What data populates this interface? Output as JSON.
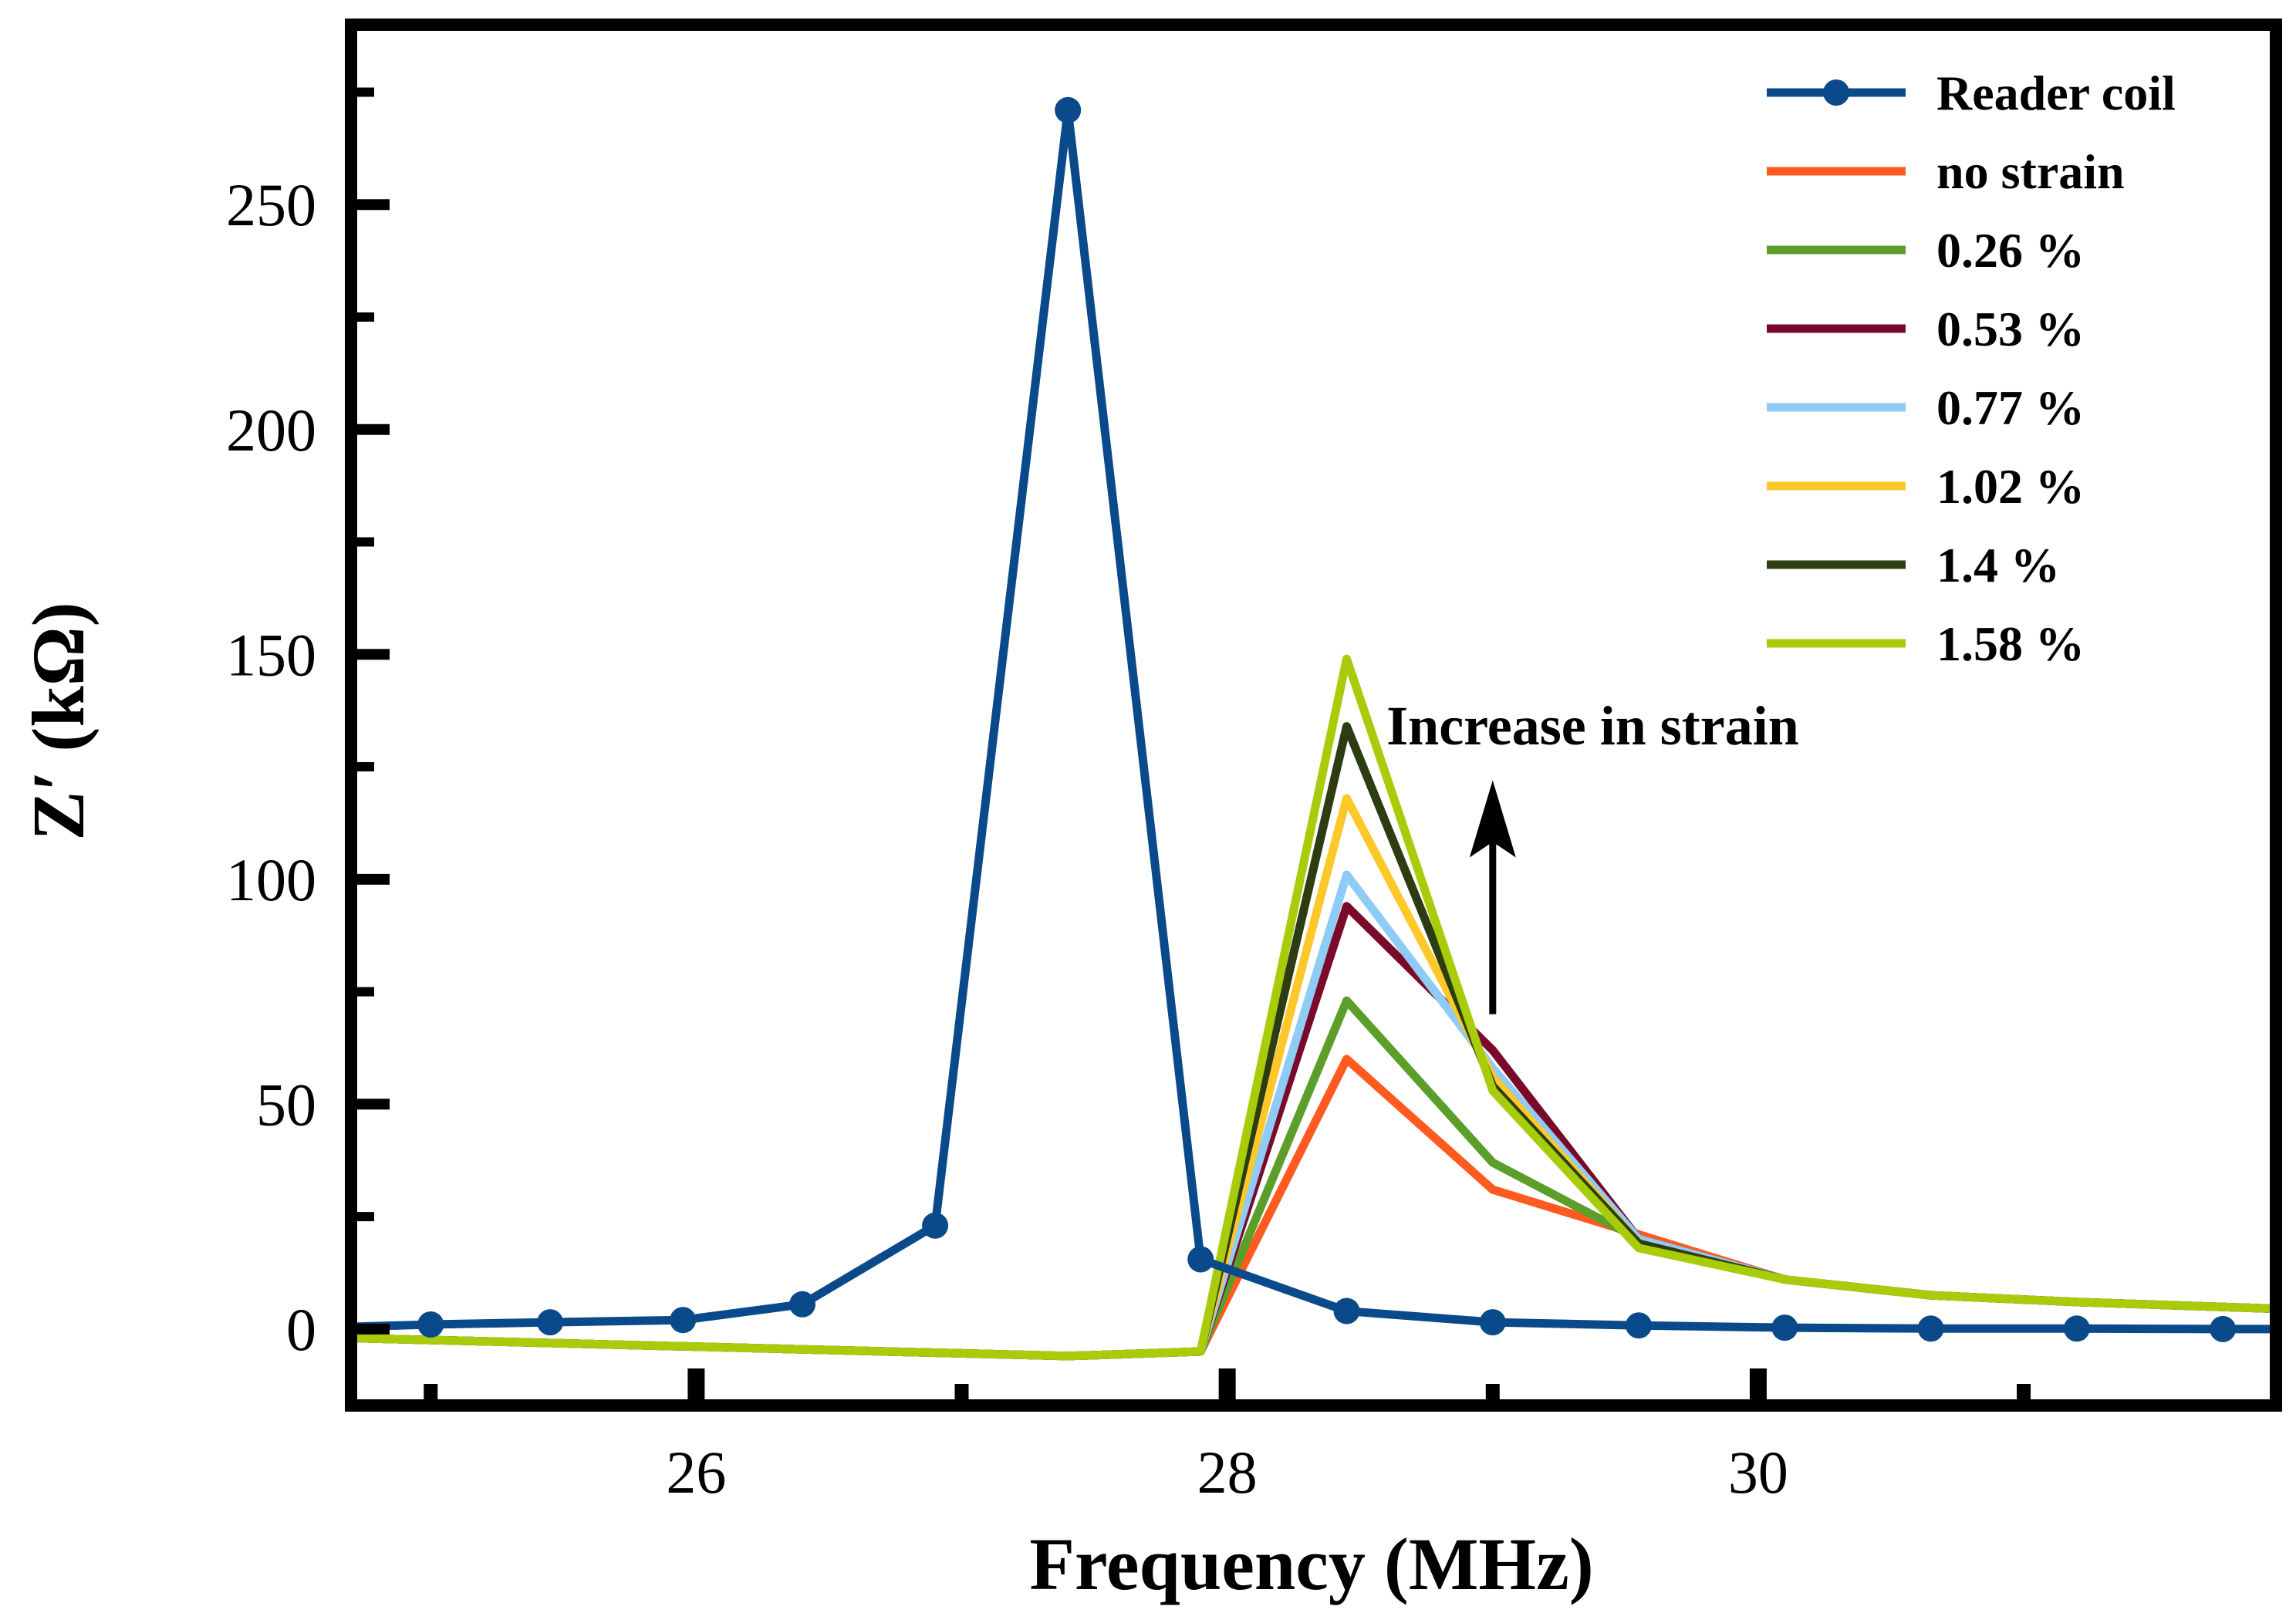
{
  "chart_data": {
    "type": "line",
    "title": "",
    "xlabel": "Frequency (MHz)",
    "ylabel": "Z′ (kΩ)",
    "xlim": [
      24.7,
      31.95
    ],
    "ylim": [
      -17,
      290
    ],
    "xticks": [
      26,
      28,
      30
    ],
    "xtick_labels": [
      "26",
      "28",
      "30"
    ],
    "yticks": [
      0,
      50,
      100,
      150,
      200,
      250
    ],
    "ytick_labels": [
      "0",
      "50",
      "100",
      "150",
      "200",
      "250"
    ],
    "legend_position": "top-right",
    "annotation": {
      "text": "Increase in strain",
      "arrow": "up",
      "arrow_x": 29.0,
      "arrow_from_y": 70,
      "arrow_to_y": 122,
      "text_x": 28.6,
      "text_y": 130
    },
    "x_common": [
      24.7,
      27.9,
      28.45,
      29.0,
      29.55,
      30.1,
      30.65,
      31.2,
      31.95
    ],
    "series": [
      {
        "name": "Reader coil",
        "color": "#0b4a8a",
        "marker": "circle",
        "x": [
          24.7,
          25.0,
          25.45,
          25.95,
          26.4,
          26.9,
          27.4,
          27.9,
          28.45,
          29.0,
          29.55,
          30.1,
          30.65,
          31.2,
          31.75,
          31.95
        ],
        "y": [
          0.5,
          1,
          1.5,
          2,
          5.5,
          23,
          271,
          15.5,
          4,
          1.5,
          0.8,
          0.3,
          0.1,
          0.1,
          0,
          0
        ]
      },
      {
        "name": "no strain",
        "color": "#ff5a1f",
        "marker": "none",
        "x": [
          24.7,
          27.4,
          27.9,
          28.45,
          29.0,
          29.55,
          30.1,
          30.65,
          31.2,
          31.95
        ],
        "y": [
          -2,
          -6,
          -5,
          60,
          31,
          21,
          11,
          7.5,
          6,
          4.5
        ]
      },
      {
        "name": "0.26 %",
        "color": "#5c9e2a",
        "marker": "none",
        "x": [
          24.7,
          27.4,
          27.9,
          28.45,
          29.0,
          29.55,
          30.1,
          30.65,
          31.2,
          31.95
        ],
        "y": [
          -2,
          -6,
          -5,
          73,
          37,
          20,
          11,
          7.5,
          6,
          4.5
        ]
      },
      {
        "name": "0.53 %",
        "color": "#7a0a2a",
        "marker": "none",
        "x": [
          24.7,
          27.4,
          27.9,
          28.45,
          29.0,
          29.55,
          30.1,
          30.65,
          31.2,
          31.95
        ],
        "y": [
          -2,
          -6,
          -5,
          94,
          62,
          20,
          11,
          7.5,
          6,
          4.5
        ]
      },
      {
        "name": "0.77 %",
        "color": "#8ecbf5",
        "marker": "none",
        "x": [
          24.7,
          27.4,
          27.9,
          28.45,
          29.0,
          29.55,
          30.1,
          30.65,
          31.2,
          31.95
        ],
        "y": [
          -2,
          -6,
          -5,
          101,
          58,
          20,
          11,
          7.5,
          6,
          4.5
        ]
      },
      {
        "name": "1.02 %",
        "color": "#ffc82a",
        "marker": "none",
        "x": [
          24.7,
          27.4,
          27.9,
          28.45,
          29.0,
          29.55,
          30.1,
          30.65,
          31.2,
          31.95
        ],
        "y": [
          -2,
          -6,
          -5,
          118,
          56,
          19,
          11,
          7.5,
          6,
          4.5
        ]
      },
      {
        "name": "1.4 %",
        "color": "#2d3d12",
        "marker": "none",
        "x": [
          24.7,
          27.4,
          27.9,
          28.45,
          29.0,
          29.55,
          30.1,
          30.65,
          31.2,
          31.95
        ],
        "y": [
          -2,
          -6,
          -5,
          134,
          54,
          19,
          11,
          7.5,
          6,
          4.5
        ]
      },
      {
        "name": "1.58 %",
        "color": "#a8cc0a",
        "marker": "none",
        "x": [
          24.7,
          27.4,
          27.9,
          28.45,
          29.0,
          29.55,
          30.1,
          30.65,
          31.2,
          31.95
        ],
        "y": [
          -2,
          -6,
          -5,
          149,
          53,
          18,
          11,
          7.5,
          6,
          4.5
        ]
      }
    ]
  }
}
